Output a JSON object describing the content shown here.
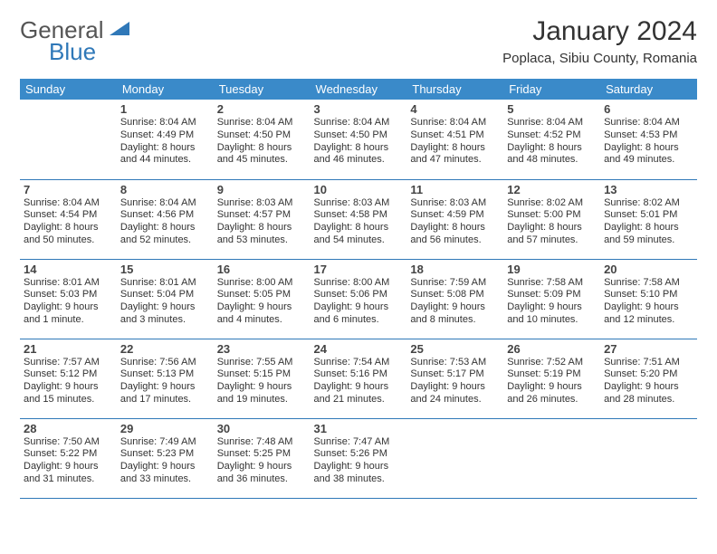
{
  "logo": {
    "part1": "General",
    "part2": "Blue"
  },
  "title": "January 2024",
  "subtitle": "Poplaca, Sibiu County, Romania",
  "day_headers": [
    "Sunday",
    "Monday",
    "Tuesday",
    "Wednesday",
    "Thursday",
    "Friday",
    "Saturday"
  ],
  "header_bg": "#3a8ac9",
  "border_color": "#2f78b8",
  "weeks": [
    [
      {
        "day": "",
        "sunrise": "",
        "sunset": "",
        "daylight1": "",
        "daylight2": ""
      },
      {
        "day": "1",
        "sunrise": "Sunrise: 8:04 AM",
        "sunset": "Sunset: 4:49 PM",
        "daylight1": "Daylight: 8 hours",
        "daylight2": "and 44 minutes."
      },
      {
        "day": "2",
        "sunrise": "Sunrise: 8:04 AM",
        "sunset": "Sunset: 4:50 PM",
        "daylight1": "Daylight: 8 hours",
        "daylight2": "and 45 minutes."
      },
      {
        "day": "3",
        "sunrise": "Sunrise: 8:04 AM",
        "sunset": "Sunset: 4:50 PM",
        "daylight1": "Daylight: 8 hours",
        "daylight2": "and 46 minutes."
      },
      {
        "day": "4",
        "sunrise": "Sunrise: 8:04 AM",
        "sunset": "Sunset: 4:51 PM",
        "daylight1": "Daylight: 8 hours",
        "daylight2": "and 47 minutes."
      },
      {
        "day": "5",
        "sunrise": "Sunrise: 8:04 AM",
        "sunset": "Sunset: 4:52 PM",
        "daylight1": "Daylight: 8 hours",
        "daylight2": "and 48 minutes."
      },
      {
        "day": "6",
        "sunrise": "Sunrise: 8:04 AM",
        "sunset": "Sunset: 4:53 PM",
        "daylight1": "Daylight: 8 hours",
        "daylight2": "and 49 minutes."
      }
    ],
    [
      {
        "day": "7",
        "sunrise": "Sunrise: 8:04 AM",
        "sunset": "Sunset: 4:54 PM",
        "daylight1": "Daylight: 8 hours",
        "daylight2": "and 50 minutes."
      },
      {
        "day": "8",
        "sunrise": "Sunrise: 8:04 AM",
        "sunset": "Sunset: 4:56 PM",
        "daylight1": "Daylight: 8 hours",
        "daylight2": "and 52 minutes."
      },
      {
        "day": "9",
        "sunrise": "Sunrise: 8:03 AM",
        "sunset": "Sunset: 4:57 PM",
        "daylight1": "Daylight: 8 hours",
        "daylight2": "and 53 minutes."
      },
      {
        "day": "10",
        "sunrise": "Sunrise: 8:03 AM",
        "sunset": "Sunset: 4:58 PM",
        "daylight1": "Daylight: 8 hours",
        "daylight2": "and 54 minutes."
      },
      {
        "day": "11",
        "sunrise": "Sunrise: 8:03 AM",
        "sunset": "Sunset: 4:59 PM",
        "daylight1": "Daylight: 8 hours",
        "daylight2": "and 56 minutes."
      },
      {
        "day": "12",
        "sunrise": "Sunrise: 8:02 AM",
        "sunset": "Sunset: 5:00 PM",
        "daylight1": "Daylight: 8 hours",
        "daylight2": "and 57 minutes."
      },
      {
        "day": "13",
        "sunrise": "Sunrise: 8:02 AM",
        "sunset": "Sunset: 5:01 PM",
        "daylight1": "Daylight: 8 hours",
        "daylight2": "and 59 minutes."
      }
    ],
    [
      {
        "day": "14",
        "sunrise": "Sunrise: 8:01 AM",
        "sunset": "Sunset: 5:03 PM",
        "daylight1": "Daylight: 9 hours",
        "daylight2": "and 1 minute."
      },
      {
        "day": "15",
        "sunrise": "Sunrise: 8:01 AM",
        "sunset": "Sunset: 5:04 PM",
        "daylight1": "Daylight: 9 hours",
        "daylight2": "and 3 minutes."
      },
      {
        "day": "16",
        "sunrise": "Sunrise: 8:00 AM",
        "sunset": "Sunset: 5:05 PM",
        "daylight1": "Daylight: 9 hours",
        "daylight2": "and 4 minutes."
      },
      {
        "day": "17",
        "sunrise": "Sunrise: 8:00 AM",
        "sunset": "Sunset: 5:06 PM",
        "daylight1": "Daylight: 9 hours",
        "daylight2": "and 6 minutes."
      },
      {
        "day": "18",
        "sunrise": "Sunrise: 7:59 AM",
        "sunset": "Sunset: 5:08 PM",
        "daylight1": "Daylight: 9 hours",
        "daylight2": "and 8 minutes."
      },
      {
        "day": "19",
        "sunrise": "Sunrise: 7:58 AM",
        "sunset": "Sunset: 5:09 PM",
        "daylight1": "Daylight: 9 hours",
        "daylight2": "and 10 minutes."
      },
      {
        "day": "20",
        "sunrise": "Sunrise: 7:58 AM",
        "sunset": "Sunset: 5:10 PM",
        "daylight1": "Daylight: 9 hours",
        "daylight2": "and 12 minutes."
      }
    ],
    [
      {
        "day": "21",
        "sunrise": "Sunrise: 7:57 AM",
        "sunset": "Sunset: 5:12 PM",
        "daylight1": "Daylight: 9 hours",
        "daylight2": "and 15 minutes."
      },
      {
        "day": "22",
        "sunrise": "Sunrise: 7:56 AM",
        "sunset": "Sunset: 5:13 PM",
        "daylight1": "Daylight: 9 hours",
        "daylight2": "and 17 minutes."
      },
      {
        "day": "23",
        "sunrise": "Sunrise: 7:55 AM",
        "sunset": "Sunset: 5:15 PM",
        "daylight1": "Daylight: 9 hours",
        "daylight2": "and 19 minutes."
      },
      {
        "day": "24",
        "sunrise": "Sunrise: 7:54 AM",
        "sunset": "Sunset: 5:16 PM",
        "daylight1": "Daylight: 9 hours",
        "daylight2": "and 21 minutes."
      },
      {
        "day": "25",
        "sunrise": "Sunrise: 7:53 AM",
        "sunset": "Sunset: 5:17 PM",
        "daylight1": "Daylight: 9 hours",
        "daylight2": "and 24 minutes."
      },
      {
        "day": "26",
        "sunrise": "Sunrise: 7:52 AM",
        "sunset": "Sunset: 5:19 PM",
        "daylight1": "Daylight: 9 hours",
        "daylight2": "and 26 minutes."
      },
      {
        "day": "27",
        "sunrise": "Sunrise: 7:51 AM",
        "sunset": "Sunset: 5:20 PM",
        "daylight1": "Daylight: 9 hours",
        "daylight2": "and 28 minutes."
      }
    ],
    [
      {
        "day": "28",
        "sunrise": "Sunrise: 7:50 AM",
        "sunset": "Sunset: 5:22 PM",
        "daylight1": "Daylight: 9 hours",
        "daylight2": "and 31 minutes."
      },
      {
        "day": "29",
        "sunrise": "Sunrise: 7:49 AM",
        "sunset": "Sunset: 5:23 PM",
        "daylight1": "Daylight: 9 hours",
        "daylight2": "and 33 minutes."
      },
      {
        "day": "30",
        "sunrise": "Sunrise: 7:48 AM",
        "sunset": "Sunset: 5:25 PM",
        "daylight1": "Daylight: 9 hours",
        "daylight2": "and 36 minutes."
      },
      {
        "day": "31",
        "sunrise": "Sunrise: 7:47 AM",
        "sunset": "Sunset: 5:26 PM",
        "daylight1": "Daylight: 9 hours",
        "daylight2": "and 38 minutes."
      },
      {
        "day": "",
        "sunrise": "",
        "sunset": "",
        "daylight1": "",
        "daylight2": ""
      },
      {
        "day": "",
        "sunrise": "",
        "sunset": "",
        "daylight1": "",
        "daylight2": ""
      },
      {
        "day": "",
        "sunrise": "",
        "sunset": "",
        "daylight1": "",
        "daylight2": ""
      }
    ]
  ]
}
